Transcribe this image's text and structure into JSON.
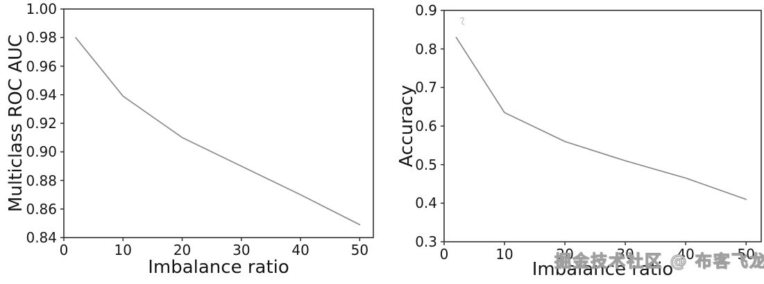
{
  "figure": {
    "background": "#ffffff",
    "axis_color": "#2e2e2e",
    "text_color": "#141414"
  },
  "watermark": {
    "text": "掘金技术社区 @ 布客飞龙",
    "fill_color": "#e2e2e2",
    "outline_color": "#9f9f9f"
  },
  "chart_data": [
    {
      "type": "line",
      "title": "",
      "xlabel": "Imbalance ratio",
      "ylabel": "Multiclass ROC AUC",
      "x": [
        2,
        10,
        20,
        30,
        40,
        50
      ],
      "y": [
        0.98,
        0.939,
        0.91,
        0.89,
        0.87,
        0.849
      ],
      "xlim": [
        0,
        52.3
      ],
      "ylim": [
        0.84,
        1.0
      ],
      "xticks": [
        0,
        10,
        20,
        30,
        40,
        50
      ],
      "xticklabels": [
        "0",
        "10",
        "20",
        "30",
        "40",
        "50"
      ],
      "yticks": [
        0.84,
        0.86,
        0.88,
        0.9,
        0.92,
        0.94,
        0.96,
        0.98,
        1.0
      ],
      "yticklabels": [
        "0.84",
        "0.86",
        "0.88",
        "0.90",
        "0.92",
        "0.94",
        "0.96",
        "0.98",
        "1.00"
      ],
      "line_color": "#8a8a8a",
      "grid": false,
      "legend": null
    },
    {
      "type": "line",
      "title": "",
      "xlabel": "Imbalance ratio",
      "ylabel": "Accuracy",
      "x": [
        2,
        10,
        20,
        30,
        40,
        50
      ],
      "y": [
        0.83,
        0.635,
        0.56,
        0.51,
        0.465,
        0.41
      ],
      "xlim": [
        0,
        52.5
      ],
      "ylim": [
        0.3,
        0.9
      ],
      "xticks": [
        0,
        10,
        20,
        30,
        40,
        50
      ],
      "xticklabels": [
        "0",
        "10",
        "20",
        "30",
        "40",
        "50"
      ],
      "yticks": [
        0.3,
        0.4,
        0.5,
        0.6,
        0.7,
        0.8,
        0.9
      ],
      "yticklabels": [
        "0.3",
        "0.4",
        "0.5",
        "0.6",
        "0.7",
        "0.8",
        "0.9"
      ],
      "line_color": "#8a8a8a",
      "grid": false,
      "legend": null
    }
  ]
}
